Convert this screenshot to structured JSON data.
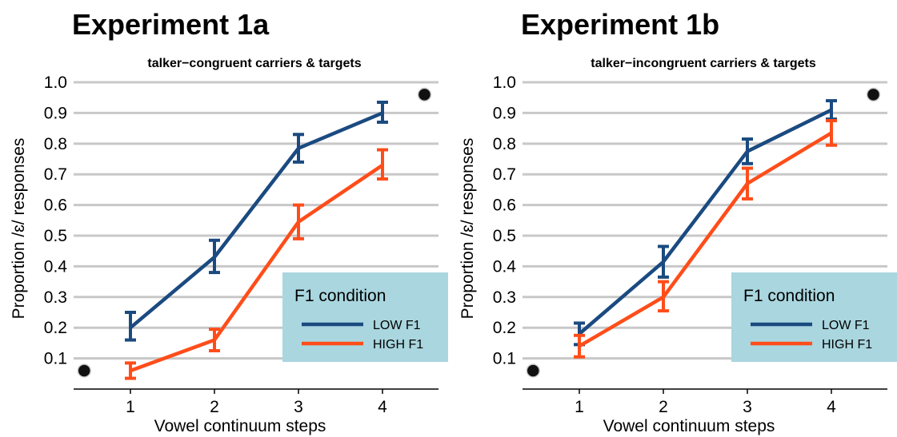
{
  "chart_data": [
    {
      "type": "line",
      "title": "Experiment 1a",
      "subtitle": "talker−congruent carriers & targets",
      "xlabel": "Vowel continuum steps",
      "ylabel": "Proportion /ɛ/ responses",
      "categories": [
        "1",
        "2",
        "3",
        "4"
      ],
      "x_ticks": [
        "1",
        "2",
        "3",
        "4"
      ],
      "y_ticks": [
        "0.1",
        "0.2",
        "0.3",
        "0.4",
        "0.5",
        "0.6",
        "0.7",
        "0.8",
        "0.9",
        "1.0"
      ],
      "ylim": [
        0.0,
        1.06
      ],
      "grid": true,
      "legend_title": "F1 condition",
      "legend_position": "bottom-right",
      "series": [
        {
          "name": "LOW F1",
          "color": "#1a4a80",
          "values": [
            0.2,
            0.43,
            0.785,
            0.9
          ],
          "error_low": [
            0.16,
            0.38,
            0.74,
            0.87
          ],
          "error_high": [
            0.25,
            0.485,
            0.83,
            0.935
          ]
        },
        {
          "name": "HIGH F1",
          "color": "#ff4d1a",
          "values": [
            0.06,
            0.16,
            0.545,
            0.73
          ],
          "error_low": [
            0.035,
            0.125,
            0.49,
            0.685
          ],
          "error_high": [
            0.085,
            0.195,
            0.6,
            0.78
          ]
        }
      ],
      "reference_points": [
        {
          "x": 0.45,
          "y": 0.06
        },
        {
          "x": 4.5,
          "y": 0.96
        }
      ]
    },
    {
      "type": "line",
      "title": "Experiment 1b",
      "subtitle": "talker−incongruent carriers & targets",
      "xlabel": "Vowel continuum steps",
      "ylabel": "Proportion /ɛ/ responses",
      "categories": [
        "1",
        "2",
        "3",
        "4"
      ],
      "x_ticks": [
        "1",
        "2",
        "3",
        "4"
      ],
      "y_ticks": [
        "0.1",
        "0.2",
        "0.3",
        "0.4",
        "0.5",
        "0.6",
        "0.7",
        "0.8",
        "0.9",
        "1.0"
      ],
      "ylim": [
        0.0,
        1.06
      ],
      "grid": true,
      "legend_title": "F1 condition",
      "legend_position": "bottom-right",
      "series": [
        {
          "name": "LOW F1",
          "color": "#1a4a80",
          "values": [
            0.18,
            0.415,
            0.775,
            0.91
          ],
          "error_low": [
            0.145,
            0.365,
            0.735,
            0.88
          ],
          "error_high": [
            0.215,
            0.465,
            0.815,
            0.94
          ]
        },
        {
          "name": "HIGH F1",
          "color": "#ff4d1a",
          "values": [
            0.14,
            0.3,
            0.67,
            0.835
          ],
          "error_low": [
            0.105,
            0.255,
            0.62,
            0.795
          ],
          "error_high": [
            0.175,
            0.35,
            0.72,
            0.875
          ]
        }
      ],
      "reference_points": [
        {
          "x": 0.45,
          "y": 0.06
        },
        {
          "x": 4.5,
          "y": 0.96
        }
      ]
    }
  ]
}
